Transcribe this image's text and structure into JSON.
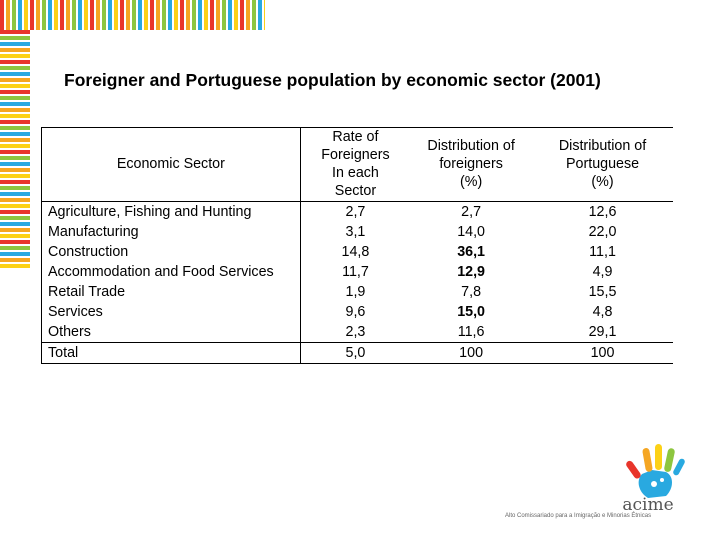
{
  "title": "Foreigner and Portuguese population by economic sector (2001)",
  "table": {
    "headers": {
      "sector": "Economic Sector",
      "rate": [
        "Rate of",
        "Foreigners",
        "In each",
        "Sector"
      ],
      "dist_foreigners": [
        "Distribution of",
        "foreigners",
        "(%)"
      ],
      "dist_portuguese": [
        "Distribution of",
        "Portuguese",
        "(%)"
      ]
    },
    "rows": [
      {
        "sector": "Agriculture, Fishing and Hunting",
        "rate": "2,7",
        "foreigners": "2,7",
        "portuguese": "12,6"
      },
      {
        "sector": "Manufacturing",
        "rate": "3,1",
        "foreigners": "14,0",
        "portuguese": "22,0"
      },
      {
        "sector": "Construction",
        "rate": "14,8",
        "foreigners": "36,1",
        "portuguese": "11,1"
      },
      {
        "sector": "Accommodation and Food Services",
        "rate": "11,7",
        "foreigners": "12,9",
        "portuguese": "4,9"
      },
      {
        "sector": "Retail Trade",
        "rate": "1,9",
        "foreigners": "7,8",
        "portuguese": "15,5"
      },
      {
        "sector": "Services",
        "rate": "9,6",
        "foreigners": "15,0",
        "portuguese": "4,8"
      },
      {
        "sector": "Others",
        "rate": "2,3",
        "foreigners": "11,6",
        "portuguese": "29,1"
      }
    ],
    "total": {
      "sector": "Total",
      "rate": "5,0",
      "foreigners": "100",
      "portuguese": "100"
    }
  },
  "logo": {
    "name": "acime",
    "tagline": "Alto Comissariado para a Imigração e Minorias Étnicas",
    "colors": [
      "#e8352b",
      "#f5a623",
      "#fcd116",
      "#8dc63f",
      "#29a9e0"
    ]
  }
}
